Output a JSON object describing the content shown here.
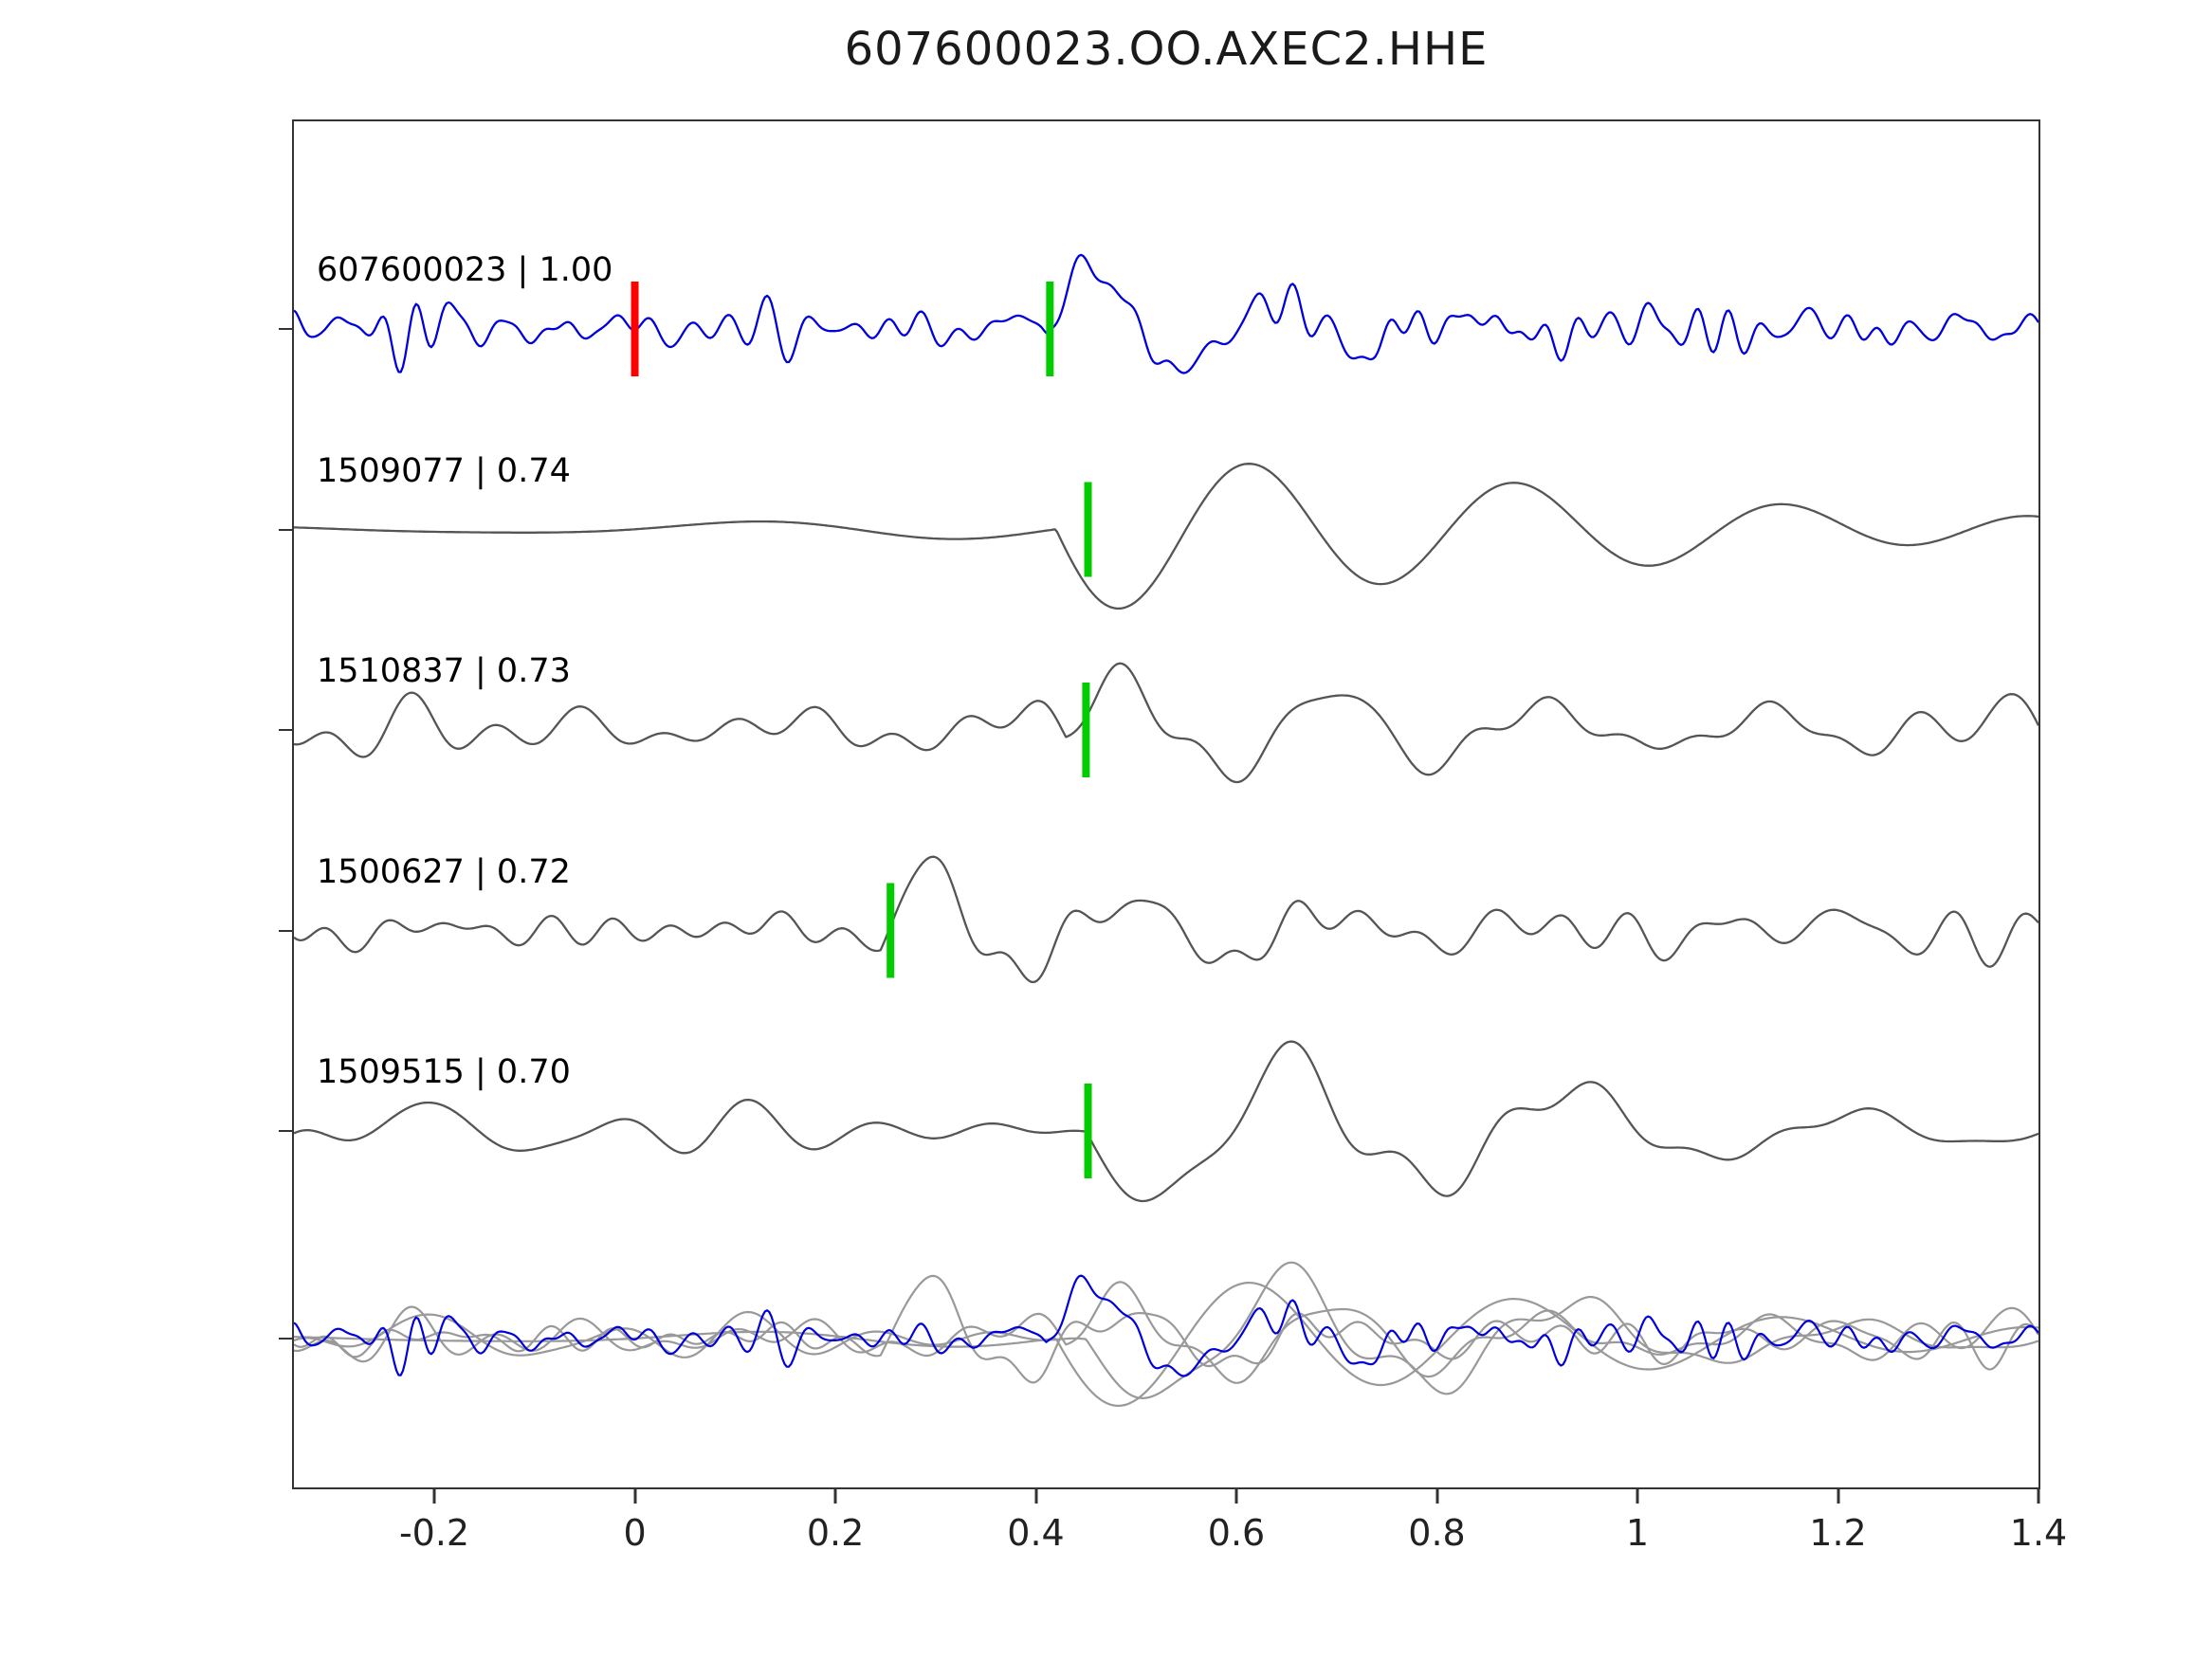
{
  "chart_data": {
    "type": "line",
    "title": "607600023.OO.AXEC2.HHE",
    "xlabel": "",
    "ylabel": "",
    "x_range": [
      -0.34,
      1.4
    ],
    "x_ticks": [
      -0.2,
      0,
      0.2,
      0.4,
      0.6,
      0.8,
      1,
      1.2,
      1.4
    ],
    "x_tick_labels": [
      "-0.2",
      "0",
      "0.2",
      "0.4",
      "0.6",
      "0.8",
      "1",
      "1.2",
      "1.4"
    ],
    "grid": false,
    "legend": "none",
    "colors": {
      "template_trace": "#0000dd",
      "match_trace": "#555555",
      "overlay_gray": "#999999",
      "pick_green": "#00cc00",
      "pick_red": "#ff0000",
      "axis": "#333333"
    },
    "traces": [
      {
        "id": "607600023",
        "correlation": "1.00",
        "label": "607600023 | 1.00",
        "role": "template",
        "color": "#0000dd",
        "picks": [
          {
            "x": 0.0,
            "color": "#ff0000",
            "name": "origin-marker"
          },
          {
            "x": 0.414,
            "color": "#00cc00",
            "name": "phase-pick"
          }
        ],
        "waveform_synthesis": {
          "seed": 101,
          "noise_amp": 30,
          "f_lo": 5,
          "f_hi": 40,
          "n_components": 70,
          "event": {
            "onset": 0.41,
            "amp": 85,
            "freq": 5.5,
            "tau": 0.2,
            "sign": 1
          }
        }
      },
      {
        "id": "1509077",
        "correlation": "0.74",
        "label": "1509077 | 0.74",
        "role": "match",
        "color": "#555555",
        "picks": [
          {
            "x": 0.452,
            "color": "#00cc00",
            "name": "phase-pick"
          }
        ],
        "waveform_synthesis": {
          "seed": 202,
          "noise_amp": 10,
          "f_lo": 0.8,
          "f_hi": 4,
          "n_components": 20,
          "event": {
            "onset": 0.42,
            "amp": 100,
            "freq": 3.8,
            "tau": 0.6,
            "sign": -1
          }
        }
      },
      {
        "id": "1510837",
        "correlation": "0.73",
        "label": "1510837 | 0.73",
        "role": "match",
        "color": "#555555",
        "picks": [
          {
            "x": 0.45,
            "color": "#00cc00",
            "name": "phase-pick"
          }
        ],
        "waveform_synthesis": {
          "seed": 303,
          "noise_amp": 30,
          "f_lo": 2,
          "f_hi": 14,
          "n_components": 45,
          "event": {
            "onset": 0.43,
            "amp": 80,
            "freq": 4.8,
            "tau": 0.4,
            "sign": 1
          }
        }
      },
      {
        "id": "1500627",
        "correlation": "0.72",
        "label": "1500627 | 0.72",
        "role": "match",
        "color": "#555555",
        "picks": [
          {
            "x": 0.255,
            "color": "#00cc00",
            "name": "phase-pick"
          }
        ],
        "waveform_synthesis": {
          "seed": 404,
          "noise_amp": 33,
          "f_lo": 2.5,
          "f_hi": 18,
          "n_components": 55,
          "event": {
            "onset": 0.245,
            "amp": 62,
            "freq": 5.2,
            "tau": 0.4,
            "sign": 1
          }
        }
      },
      {
        "id": "1509515",
        "correlation": "0.70",
        "label": "1509515 | 0.70",
        "role": "match",
        "color": "#555555",
        "picks": [
          {
            "x": 0.452,
            "color": "#00cc00",
            "name": "phase-pick"
          }
        ],
        "waveform_synthesis": {
          "seed": 505,
          "noise_amp": 32,
          "f_lo": 2,
          "f_hi": 12,
          "n_components": 45,
          "event": {
            "onset": 0.45,
            "amp": 75,
            "freq": 3.6,
            "tau": 0.55,
            "sign": -1
          }
        }
      }
    ],
    "overlay": {
      "description": "all traces superimposed at bottom row",
      "gray_color": "#999999",
      "template_color": "#0000dd",
      "amplitude_scale": 0.85
    }
  }
}
